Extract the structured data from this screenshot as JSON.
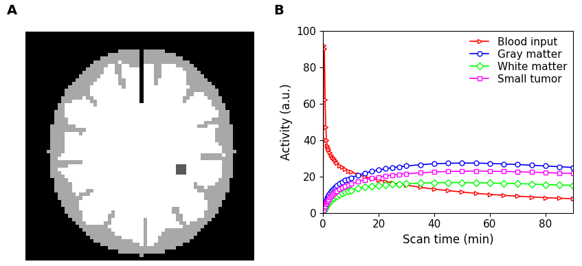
{
  "panel_labels": [
    "A",
    "B"
  ],
  "chart_data": {
    "type": "line",
    "x_label": "Scan time (min)",
    "y_label": "Activity (a.u.)",
    "x": [
      0,
      0.25,
      0.5,
      0.75,
      1,
      1.25,
      1.5,
      1.75,
      2,
      2.5,
      3,
      3.5,
      4,
      4.5,
      5,
      6,
      7,
      8,
      9,
      10,
      12.5,
      15,
      17.5,
      20,
      22.5,
      25,
      27.5,
      30,
      35,
      40,
      45,
      50,
      55,
      60,
      65,
      70,
      75,
      80,
      85,
      90
    ],
    "xlim": [
      0,
      90
    ],
    "xticks": [
      0,
      20,
      40,
      60,
      80
    ],
    "ylim": [
      0,
      100
    ],
    "yticks": [
      0,
      20,
      40,
      60,
      80,
      100
    ],
    "legend": "upper right",
    "series": [
      {
        "name": "Blood input",
        "color": "#ff0000",
        "marker": "triangle_right",
        "values": [
          0,
          92,
          90,
          62,
          47,
          40,
          37,
          35.5,
          34.5,
          33,
          31.5,
          30.5,
          29.5,
          28.5,
          27.5,
          26,
          25,
          24,
          23,
          22.5,
          21,
          19.8,
          18.8,
          18,
          17.2,
          16.4,
          15.8,
          15.2,
          14,
          13,
          12.2,
          11.4,
          10.7,
          10.1,
          9.6,
          9.1,
          8.7,
          8.3,
          8.0,
          7.7
        ]
      },
      {
        "name": "Gray matter",
        "color": "#0000ff",
        "marker": "circle",
        "values": [
          0,
          2,
          3.5,
          5,
          6,
          7,
          8,
          8.8,
          9.5,
          10.8,
          11.8,
          12.7,
          13.5,
          14.2,
          14.9,
          16,
          17,
          17.8,
          18.5,
          19.2,
          20.6,
          21.8,
          22.7,
          23.5,
          24.2,
          24.8,
          25.3,
          25.7,
          26.4,
          26.9,
          27.2,
          27.3,
          27.3,
          27.1,
          26.8,
          26.5,
          26.1,
          25.7,
          25.3,
          24.9
        ]
      },
      {
        "name": "White matter",
        "color": "#00ff00",
        "marker": "diamond",
        "values": [
          0,
          1,
          1.8,
          2.6,
          3.3,
          3.9,
          4.5,
          5,
          5.5,
          6.3,
          7,
          7.7,
          8.3,
          8.8,
          9.3,
          10.1,
          10.8,
          11.4,
          11.9,
          12.4,
          13.3,
          14,
          14.6,
          15,
          15.3,
          15.6,
          15.8,
          16,
          16.3,
          16.5,
          16.6,
          16.6,
          16.5,
          16.4,
          16.2,
          16,
          15.8,
          15.5,
          15.3,
          15.0
        ]
      },
      {
        "name": "Small tumor",
        "color": "#ff00ff",
        "marker": "square",
        "values": [
          0,
          1.5,
          2.7,
          3.8,
          4.7,
          5.5,
          6.2,
          6.8,
          7.4,
          8.4,
          9.3,
          10.1,
          10.8,
          11.4,
          12,
          13,
          13.9,
          14.6,
          15.3,
          15.9,
          17.1,
          18.1,
          18.9,
          19.6,
          20.2,
          20.7,
          21.1,
          21.4,
          22,
          22.4,
          22.7,
          22.8,
          22.9,
          22.8,
          22.7,
          22.5,
          22.3,
          22.1,
          21.8,
          21.6
        ]
      }
    ]
  }
}
